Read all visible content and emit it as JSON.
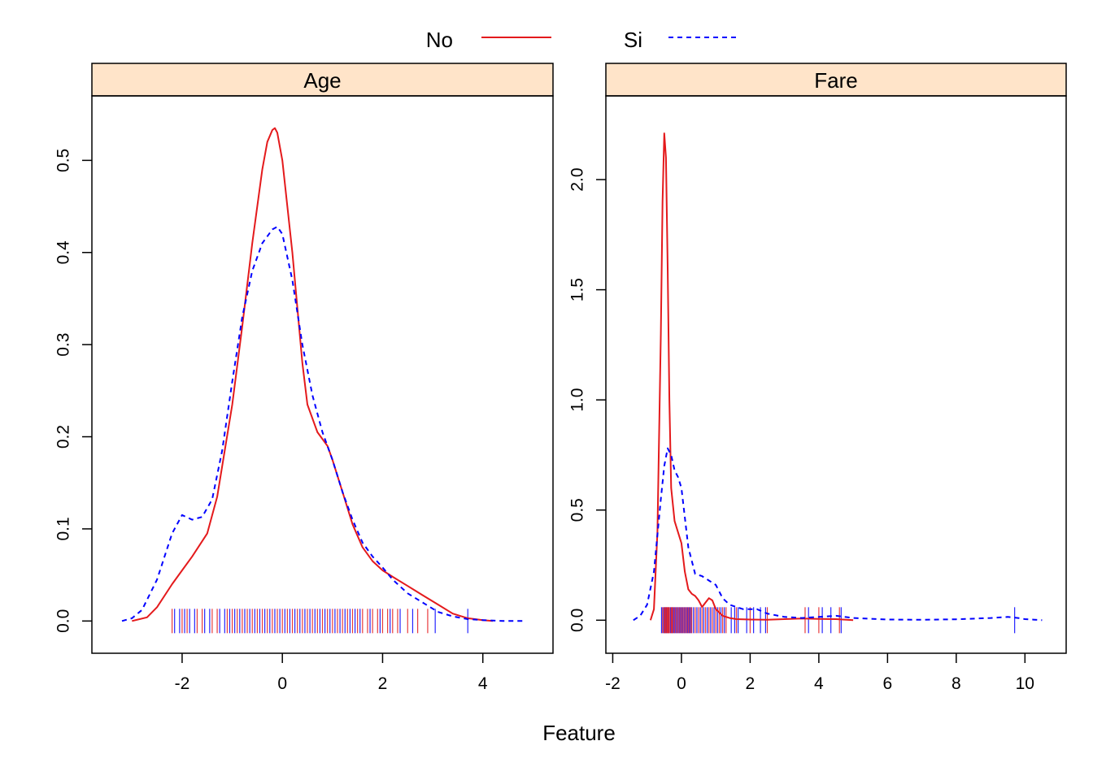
{
  "chart_data": {
    "type": "line",
    "xlabel": "Feature",
    "ylabel": "",
    "legend": {
      "placement": "top",
      "entries": [
        {
          "name": "No",
          "color": "#e41a1c",
          "style": "solid"
        },
        {
          "name": "Si",
          "color": "#0000ff",
          "style": "dashed"
        }
      ]
    },
    "strip_color": "#ffe4c9",
    "panels": [
      {
        "title": "Age",
        "xlim": [
          -3.8,
          5.4
        ],
        "ylim": [
          -0.035,
          0.57
        ],
        "xticks": [
          -2,
          0,
          2,
          4
        ],
        "yticks": [
          0.0,
          0.1,
          0.2,
          0.3,
          0.4,
          0.5
        ],
        "ytick_labels": [
          "0.0",
          "0.1",
          "0.2",
          "0.3",
          "0.4",
          "0.5"
        ],
        "series": [
          {
            "name": "No",
            "x": [
              -3.0,
              -2.7,
              -2.5,
              -2.2,
              -2.0,
              -1.8,
              -1.5,
              -1.3,
              -1.0,
              -0.8,
              -0.6,
              -0.4,
              -0.3,
              -0.2,
              -0.15,
              -0.1,
              0.0,
              0.2,
              0.4,
              0.5,
              0.7,
              0.9,
              1.0,
              1.2,
              1.4,
              1.6,
              1.8,
              2.0,
              2.2,
              2.5,
              2.8,
              3.1,
              3.4,
              3.7,
              4.0,
              4.2
            ],
            "values": [
              0.0,
              0.004,
              0.015,
              0.04,
              0.055,
              0.07,
              0.095,
              0.135,
              0.235,
              0.32,
              0.41,
              0.49,
              0.52,
              0.533,
              0.535,
              0.53,
              0.5,
              0.4,
              0.28,
              0.235,
              0.205,
              0.19,
              0.175,
              0.14,
              0.105,
              0.08,
              0.065,
              0.055,
              0.048,
              0.038,
              0.028,
              0.018,
              0.008,
              0.003,
              0.001,
              0.0
            ]
          },
          {
            "name": "Si",
            "x": [
              -3.2,
              -3.0,
              -2.8,
              -2.5,
              -2.2,
              -2.0,
              -1.8,
              -1.6,
              -1.4,
              -1.2,
              -1.0,
              -0.8,
              -0.6,
              -0.4,
              -0.2,
              -0.1,
              0.0,
              0.2,
              0.4,
              0.6,
              0.8,
              1.0,
              1.2,
              1.4,
              1.6,
              1.8,
              2.0,
              2.2,
              2.5,
              2.8,
              3.1,
              3.4,
              3.7,
              4.0,
              4.4,
              4.8
            ],
            "values": [
              0.0,
              0.003,
              0.012,
              0.045,
              0.095,
              0.115,
              0.11,
              0.113,
              0.132,
              0.185,
              0.26,
              0.33,
              0.38,
              0.41,
              0.425,
              0.428,
              0.42,
              0.37,
              0.3,
              0.245,
              0.205,
              0.175,
              0.14,
              0.11,
              0.085,
              0.07,
              0.058,
              0.045,
              0.03,
              0.02,
              0.01,
              0.005,
              0.002,
              0.001,
              0.0,
              0.0
            ]
          }
        ],
        "rug": {
          "No": [
            -2.2,
            -2.0,
            -1.9,
            -1.7,
            -1.6,
            -1.4,
            -1.3,
            -1.1,
            -1.0,
            -0.9,
            -0.8,
            -0.7,
            -0.6,
            -0.5,
            -0.4,
            -0.3,
            -0.2,
            -0.1,
            0.0,
            0.1,
            0.2,
            0.3,
            0.4,
            0.5,
            0.6,
            0.7,
            0.8,
            0.9,
            1.0,
            1.1,
            1.2,
            1.3,
            1.4,
            1.5,
            1.6,
            1.7,
            1.8,
            1.9,
            2.0,
            2.1,
            2.2,
            2.3,
            2.5,
            2.7,
            2.9
          ],
          "Si": [
            -2.15,
            -2.05,
            -1.95,
            -1.85,
            -1.75,
            -1.55,
            -1.45,
            -1.25,
            -1.15,
            -1.05,
            -0.95,
            -0.85,
            -0.75,
            -0.65,
            -0.55,
            -0.45,
            -0.35,
            -0.25,
            -0.15,
            -0.05,
            0.05,
            0.15,
            0.25,
            0.35,
            0.45,
            0.55,
            0.65,
            0.75,
            0.85,
            0.95,
            1.05,
            1.15,
            1.25,
            1.35,
            1.45,
            1.55,
            1.75,
            1.95,
            2.15,
            2.35,
            2.6,
            3.05,
            3.7
          ]
        }
      },
      {
        "title": "Fare",
        "xlim": [
          -2.2,
          11.2
        ],
        "ylim": [
          -0.15,
          2.38
        ],
        "xticks": [
          -2,
          0,
          2,
          4,
          6,
          8,
          10
        ],
        "yticks": [
          0.0,
          0.5,
          1.0,
          1.5,
          2.0
        ],
        "ytick_labels": [
          "0.0",
          "0.5",
          "1.0",
          "1.5",
          "2.0"
        ],
        "series": [
          {
            "name": "No",
            "x": [
              -0.9,
              -0.8,
              -0.7,
              -0.6,
              -0.55,
              -0.5,
              -0.45,
              -0.4,
              -0.35,
              -0.3,
              -0.2,
              -0.1,
              0.0,
              0.1,
              0.2,
              0.3,
              0.4,
              0.5,
              0.6,
              0.7,
              0.8,
              0.9,
              1.0,
              1.2,
              1.4,
              1.6,
              2.0,
              2.5,
              3.0,
              3.5,
              4.0,
              4.5,
              5.0
            ],
            "values": [
              0.0,
              0.05,
              0.4,
              1.3,
              1.9,
              2.21,
              2.1,
              1.6,
              1.0,
              0.6,
              0.45,
              0.4,
              0.35,
              0.22,
              0.14,
              0.12,
              0.11,
              0.09,
              0.06,
              0.08,
              0.1,
              0.09,
              0.05,
              0.02,
              0.01,
              0.005,
              0.003,
              0.002,
              0.005,
              0.008,
              0.006,
              0.005,
              0.0
            ]
          },
          {
            "name": "Si",
            "x": [
              -1.4,
              -1.2,
              -1.0,
              -0.8,
              -0.6,
              -0.5,
              -0.4,
              -0.3,
              -0.2,
              -0.1,
              0.0,
              0.2,
              0.4,
              0.6,
              0.8,
              1.0,
              1.2,
              1.4,
              1.6,
              1.8,
              2.0,
              2.2,
              2.5,
              3.0,
              3.5,
              4.0,
              4.5,
              5.0,
              6.0,
              7.0,
              8.0,
              9.0,
              9.5,
              9.8,
              10.0,
              10.5
            ],
            "values": [
              0.0,
              0.02,
              0.07,
              0.22,
              0.55,
              0.7,
              0.78,
              0.75,
              0.68,
              0.65,
              0.6,
              0.33,
              0.21,
              0.2,
              0.18,
              0.16,
              0.1,
              0.07,
              0.06,
              0.05,
              0.05,
              0.05,
              0.03,
              0.015,
              0.01,
              0.015,
              0.02,
              0.01,
              0.003,
              0.002,
              0.004,
              0.01,
              0.015,
              0.01,
              0.005,
              0.0
            ]
          }
        ],
        "rug": {
          "No": [
            -0.55,
            -0.5,
            -0.48,
            -0.45,
            -0.42,
            -0.4,
            -0.38,
            -0.35,
            -0.3,
            -0.28,
            -0.25,
            -0.2,
            -0.15,
            -0.1,
            -0.05,
            0.0,
            0.05,
            0.1,
            0.15,
            0.2,
            0.25,
            0.3,
            0.4,
            0.5,
            0.6,
            0.7,
            0.8,
            0.9,
            1.0,
            1.1,
            1.2,
            1.3,
            1.6,
            2.0,
            2.5,
            3.6,
            4.0,
            4.6
          ],
          "Si": [
            -0.58,
            -0.52,
            -0.47,
            -0.43,
            -0.37,
            -0.32,
            -0.27,
            -0.22,
            -0.17,
            -0.12,
            -0.07,
            -0.02,
            0.03,
            0.08,
            0.13,
            0.18,
            0.23,
            0.28,
            0.35,
            0.45,
            0.55,
            0.65,
            0.75,
            0.85,
            0.95,
            1.05,
            1.15,
            1.25,
            1.45,
            1.55,
            1.65,
            1.9,
            2.1,
            2.3,
            2.45,
            3.7,
            4.1,
            4.35,
            4.65,
            9.7
          ]
        }
      }
    ]
  }
}
